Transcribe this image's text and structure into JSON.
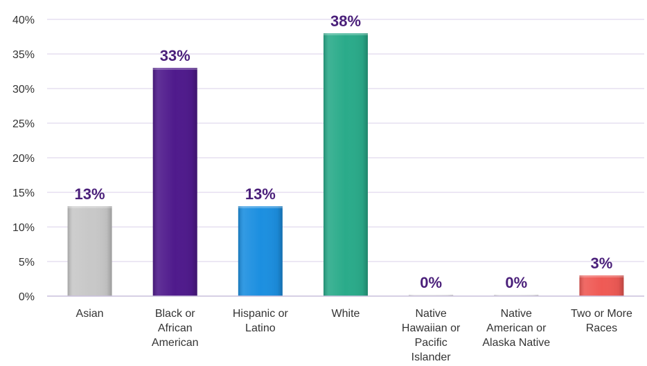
{
  "chart_data": {
    "type": "bar",
    "title": "",
    "xlabel": "",
    "ylabel": "",
    "ylim": [
      0,
      40
    ],
    "y_ticks": [
      "0%",
      "5%",
      "10%",
      "15%",
      "20%",
      "25%",
      "30%",
      "35%",
      "40%"
    ],
    "y_tick_values": [
      0,
      5,
      10,
      15,
      20,
      25,
      30,
      35,
      40
    ],
    "grid": true,
    "legend": "none",
    "categories": [
      [
        "Asian"
      ],
      [
        "Black or",
        "African",
        "American"
      ],
      [
        "Hispanic or",
        "Latino"
      ],
      [
        "White"
      ],
      [
        "Native",
        "Hawaiian or",
        "Pacific",
        "Islander"
      ],
      [
        "Native",
        "American or",
        "Alaska Native"
      ],
      [
        "Two or More",
        "Races"
      ]
    ],
    "values": [
      13,
      33,
      13,
      38,
      0,
      0,
      3
    ],
    "data_labels": [
      "13%",
      "33%",
      "13%",
      "38%",
      "0%",
      "0%",
      "3%"
    ],
    "colors": [
      "#c8c8c8",
      "#4f1a8c",
      "#1c8fe0",
      "#2aab8a",
      "#e0e0e0",
      "#e0e0e0",
      "#ef5a55"
    ],
    "label_color": "#4a1f7a"
  }
}
